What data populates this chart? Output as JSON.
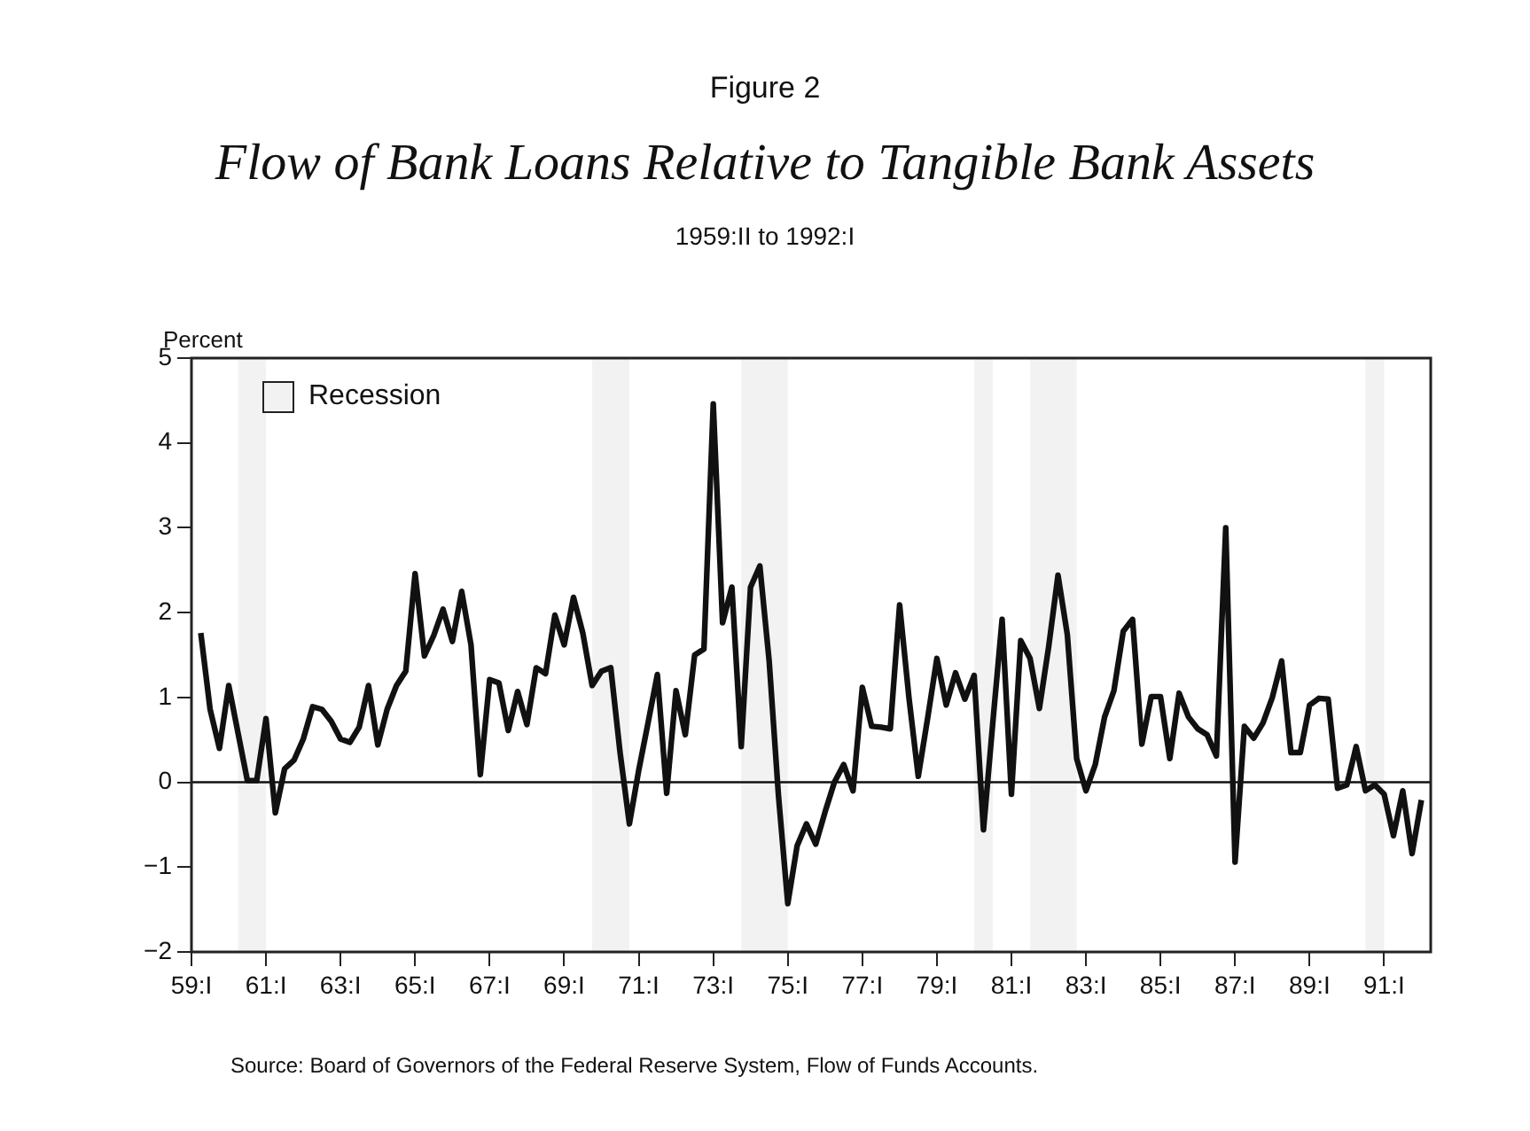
{
  "chart_data": {
    "type": "line",
    "title": "Flow of Bank Loans Relative to Tangible Bank Assets",
    "subtitle": "1959:II to 1992:I",
    "ylabel": "Percent",
    "annotations": [
      "Figure 2",
      "Source: Board of Governors of the Federal Reserve System, Flow of Funds Accounts."
    ],
    "x": [
      "1959-04",
      "1959-07",
      "1959-10",
      "1960-01",
      "1960-04",
      "1960-07",
      "1960-10",
      "1961-01",
      "1961-04",
      "1961-07",
      "1961-10",
      "1962-01",
      "1962-04",
      "1962-07",
      "1962-10",
      "1963-01",
      "1963-04",
      "1963-07",
      "1963-10",
      "1964-01",
      "1964-04",
      "1964-07",
      "1964-10",
      "1965-01",
      "1965-04",
      "1965-07",
      "1965-10",
      "1966-01",
      "1966-04",
      "1966-07",
      "1966-10",
      "1967-01",
      "1967-04",
      "1967-07",
      "1967-10",
      "1968-01",
      "1968-04",
      "1968-07",
      "1968-10",
      "1969-01",
      "1969-04",
      "1969-07",
      "1969-10",
      "1970-01",
      "1970-04",
      "1970-07",
      "1970-10",
      "1971-01",
      "1971-04",
      "1971-07",
      "1971-10",
      "1972-01",
      "1972-04",
      "1972-07",
      "1972-10",
      "1973-01",
      "1973-04",
      "1973-07",
      "1973-10",
      "1974-01",
      "1974-04",
      "1974-07",
      "1974-10",
      "1975-01",
      "1975-04",
      "1975-07",
      "1975-10",
      "1976-01",
      "1976-04",
      "1976-07",
      "1976-10",
      "1977-01",
      "1977-04",
      "1977-07",
      "1977-10",
      "1978-01",
      "1978-04",
      "1978-07",
      "1978-10",
      "1979-01",
      "1979-04",
      "1979-07",
      "1979-10",
      "1980-01",
      "1980-04",
      "1980-07",
      "1980-10",
      "1981-01",
      "1981-04",
      "1981-07",
      "1981-10",
      "1982-01",
      "1982-04",
      "1982-07",
      "1982-10",
      "1983-01",
      "1983-04",
      "1983-07",
      "1983-10",
      "1984-01",
      "1984-04",
      "1984-07",
      "1984-10",
      "1985-01",
      "1985-04",
      "1985-07",
      "1985-10",
      "1986-01",
      "1986-04",
      "1986-07",
      "1986-10",
      "1987-01",
      "1987-04",
      "1987-07",
      "1987-10",
      "1988-01",
      "1988-04",
      "1988-07",
      "1988-10",
      "1989-01",
      "1989-04",
      "1989-07",
      "1989-10",
      "1990-01",
      "1990-04",
      "1990-07",
      "1990-10",
      "1991-01",
      "1991-04",
      "1991-07",
      "1991-10",
      "1992-01"
    ],
    "series": [
      {
        "color": "#111111",
        "values": [
          1.76,
          0.86,
          0.4,
          1.14,
          0.58,
          0.02,
          0.02,
          0.75,
          -0.36,
          0.16,
          0.26,
          0.51,
          0.89,
          0.86,
          0.72,
          0.51,
          0.47,
          0.65,
          1.14,
          0.44,
          0.86,
          1.14,
          1.31,
          2.46,
          1.49,
          1.73,
          2.04,
          1.66,
          2.25,
          1.62,
          0.09,
          1.21,
          1.17,
          0.61,
          1.07,
          0.68,
          1.35,
          1.28,
          1.97,
          1.62,
          2.18,
          1.76,
          1.14,
          1.31,
          1.35,
          0.35,
          -0.49,
          0.14,
          0.7,
          1.27,
          -0.13,
          1.08,
          0.56,
          1.5,
          1.57,
          4.46,
          1.88,
          2.3,
          0.42,
          2.3,
          2.55,
          1.43,
          -0.16,
          -1.43,
          -0.75,
          -0.49,
          -0.73,
          -0.35,
          0.0,
          0.21,
          -0.1,
          1.12,
          0.66,
          0.65,
          0.63,
          2.09,
          1.0,
          0.07,
          0.75,
          1.46,
          0.91,
          1.29,
          0.98,
          1.26,
          -0.56,
          0.7,
          1.92,
          -0.14,
          1.67,
          1.46,
          0.87,
          1.6,
          2.44,
          1.74,
          0.28,
          -0.1,
          0.21,
          0.77,
          1.08,
          1.78,
          1.92,
          0.45,
          1.01,
          1.01,
          0.28,
          1.05,
          0.77,
          0.63,
          0.56,
          0.31,
          3.0,
          -0.94,
          0.66,
          0.52,
          0.7,
          1.0,
          1.43,
          0.35,
          0.35,
          0.91,
          0.99,
          0.98,
          -0.07,
          -0.03,
          0.42,
          -0.1,
          -0.03,
          -0.14,
          -0.63,
          -0.1,
          -0.84,
          -0.21
        ]
      }
    ],
    "xlim": [
      "1959-01",
      "1992-04"
    ],
    "xticks": [
      {
        "value": "1959-01",
        "label": "59:I"
      },
      {
        "value": "1961-01",
        "label": "61:I"
      },
      {
        "value": "1963-01",
        "label": "63:I"
      },
      {
        "value": "1965-01",
        "label": "65:I"
      },
      {
        "value": "1967-01",
        "label": "67:I"
      },
      {
        "value": "1969-01",
        "label": "69:I"
      },
      {
        "value": "1971-01",
        "label": "71:I"
      },
      {
        "value": "1973-01",
        "label": "73:I"
      },
      {
        "value": "1975-01",
        "label": "75:I"
      },
      {
        "value": "1977-01",
        "label": "77:I"
      },
      {
        "value": "1979-01",
        "label": "79:I"
      },
      {
        "value": "1981-01",
        "label": "81:I"
      },
      {
        "value": "1983-01",
        "label": "83:I"
      },
      {
        "value": "1985-01",
        "label": "85:I"
      },
      {
        "value": "1987-01",
        "label": "87:I"
      },
      {
        "value": "1989-01",
        "label": "89:I"
      },
      {
        "value": "1991-01",
        "label": "91:I"
      }
    ],
    "ylim": [
      -2,
      5
    ],
    "yticks": [
      {
        "value": -2,
        "label": "−2"
      },
      {
        "value": -1,
        "label": "−1"
      },
      0,
      1,
      2,
      3,
      4,
      5
    ],
    "ref_lines": [
      {
        "axis": "y",
        "value": 0,
        "color": "#111111"
      }
    ],
    "bands": [
      {
        "axis": "x",
        "from": "1960-04",
        "to": "1961-01",
        "label": "Recession",
        "color": "#f2f2f2"
      },
      {
        "axis": "x",
        "from": "1969-10",
        "to": "1970-10",
        "color": "#f2f2f2"
      },
      {
        "axis": "x",
        "from": "1973-10",
        "to": "1975-01",
        "color": "#f2f2f2"
      },
      {
        "axis": "x",
        "from": "1980-01",
        "to": "1980-07",
        "color": "#f2f2f2"
      },
      {
        "axis": "x",
        "from": "1981-07",
        "to": "1982-10",
        "color": "#f2f2f2"
      },
      {
        "axis": "x",
        "from": "1990-07",
        "to": "1991-01",
        "color": "#f2f2f2"
      }
    ],
    "legend": "top left",
    "grid": false,
    "marker": "none",
    "line_style": "solid"
  }
}
